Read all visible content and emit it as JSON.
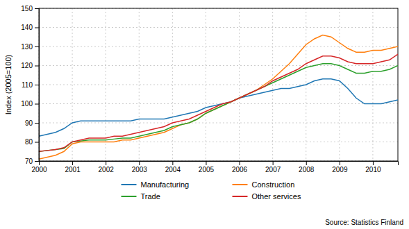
{
  "chart_data": {
    "type": "line",
    "ylabel": "Index (2005=100)",
    "annotations": [
      "Source: Statistics Finland"
    ],
    "x": [
      2000.0,
      2000.25,
      2000.5,
      2000.75,
      2001.0,
      2001.25,
      2001.5,
      2001.75,
      2002.0,
      2002.25,
      2002.5,
      2002.75,
      2003.0,
      2003.25,
      2003.5,
      2003.75,
      2004.0,
      2004.25,
      2004.5,
      2004.75,
      2005.0,
      2005.25,
      2005.5,
      2005.75,
      2006.0,
      2006.25,
      2006.5,
      2006.75,
      2007.0,
      2007.25,
      2007.5,
      2007.75,
      2008.0,
      2008.25,
      2008.5,
      2008.75,
      2009.0,
      2009.25,
      2009.5,
      2009.75,
      2010.0,
      2010.25,
      2010.5,
      2010.75
    ],
    "series": [
      {
        "name": "Manufacturing",
        "values": [
          83,
          84,
          85,
          87,
          90,
          91,
          91,
          91,
          91,
          91,
          91,
          91,
          92,
          92,
          92,
          92,
          93,
          94,
          95,
          96,
          98,
          99,
          100,
          101,
          103,
          104,
          105,
          106,
          107,
          108,
          108,
          109,
          110,
          112,
          113,
          113,
          112,
          108,
          103,
          100,
          100,
          100,
          101,
          102
        ]
      },
      {
        "name": "Construction",
        "values": [
          71,
          72,
          73,
          75,
          79,
          80,
          80,
          80,
          80,
          80,
          81,
          81,
          82,
          83,
          84,
          85,
          87,
          89,
          90,
          92,
          95,
          97,
          99,
          101,
          103,
          105,
          107,
          110,
          113,
          117,
          121,
          126,
          131,
          134,
          136,
          135,
          132,
          129,
          127,
          127,
          128,
          128,
          129,
          130
        ]
      },
      {
        "name": "Trade",
        "values": [
          75,
          75.5,
          76,
          76.5,
          80,
          80.5,
          81,
          81,
          81,
          81.5,
          82,
          82,
          83,
          84,
          85,
          86,
          88,
          89,
          90,
          92,
          95,
          97,
          99,
          101,
          103,
          105,
          107,
          109,
          111,
          113,
          115,
          117,
          119,
          120,
          121,
          121,
          120,
          118,
          116,
          116,
          117,
          117,
          118,
          120
        ]
      },
      {
        "name": "Other services",
        "values": [
          75,
          75.5,
          76,
          77,
          80,
          81,
          82,
          82,
          82,
          83,
          83,
          84,
          85,
          86,
          87,
          88,
          90,
          91,
          92,
          94,
          96,
          98,
          100,
          101,
          103,
          105,
          107,
          109,
          112,
          114,
          116,
          118,
          121,
          123,
          125,
          125,
          124,
          122,
          121,
          121,
          121,
          122,
          123,
          126
        ]
      }
    ],
    "xlim": [
      2000.0,
      2010.75
    ],
    "xticks": [
      2000,
      2001,
      2002,
      2003,
      2004,
      2005,
      2006,
      2007,
      2008,
      2009,
      2010
    ],
    "ylim": [
      70,
      150
    ],
    "yticks": [
      70,
      80,
      90,
      100,
      110,
      120,
      130,
      140,
      150
    ],
    "grid": true,
    "legend": "bottom"
  }
}
